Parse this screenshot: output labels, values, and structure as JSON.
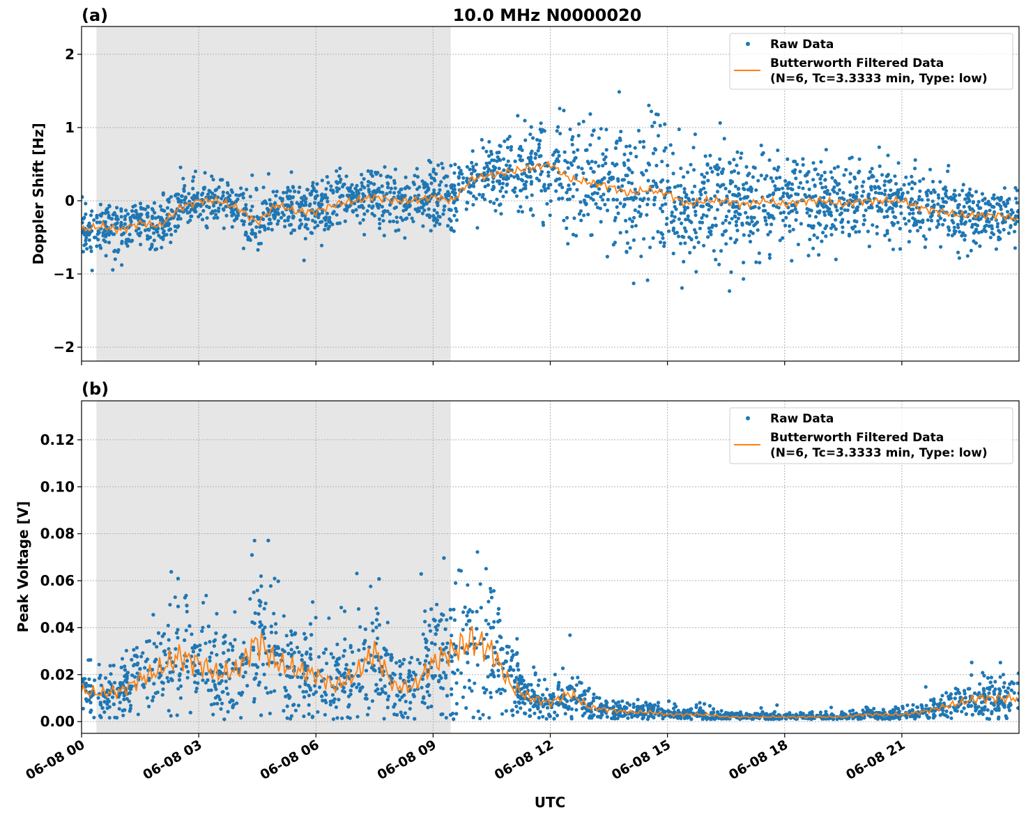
{
  "chart_data": [
    {
      "type": "scatter",
      "panel_label": "(a)",
      "title": "10.0 MHz N0000020",
      "xlabel": "",
      "ylabel": "Doppler Shift [Hz]",
      "xlim_hours": [
        0,
        24
      ],
      "ylim": [
        -2.19,
        2.38
      ],
      "yticks": [
        -2,
        -1,
        0,
        1,
        2
      ],
      "ytick_labels": [
        "−2",
        "−1",
        "0",
        "1",
        "2"
      ],
      "grid": true,
      "shaded_interval_hours": [
        0.38,
        9.45
      ],
      "legend": {
        "placement": "top-right",
        "entries": [
          "Raw Data",
          "Butterworth Filtered Data\n(N=6, Tc=3.3333 min, Type: low)"
        ]
      },
      "series": [
        {
          "name": "Raw Data",
          "kind": "scatter",
          "color": "#1f77b4",
          "note_spread_half_width": [
            [
              0,
              0.3
            ],
            [
              10,
              0.4
            ],
            [
              14,
              0.8
            ],
            [
              21,
              0.45
            ],
            [
              24,
              0.35
            ]
          ]
        },
        {
          "name": "Butterworth Filtered Data (N=6, Tc=3.3333 min, Type: low)",
          "kind": "line",
          "color": "#ff7f0e",
          "x_hours": [
            0,
            0.5,
            1,
            1.5,
            2,
            2.5,
            3,
            3.5,
            4,
            4.5,
            5,
            5.5,
            6,
            6.5,
            7,
            7.5,
            8,
            8.5,
            9,
            9.5,
            10,
            10.5,
            11,
            11.5,
            12,
            12.5,
            13,
            13.5,
            14,
            14.5,
            15,
            15.5,
            16,
            16.5,
            17,
            17.5,
            18,
            18.5,
            19,
            19.5,
            20,
            20.5,
            21,
            21.5,
            22,
            22.5,
            23,
            23.5,
            24
          ],
          "y": [
            -0.4,
            -0.35,
            -0.4,
            -0.3,
            -0.35,
            -0.1,
            0.0,
            0.0,
            -0.1,
            -0.3,
            -0.05,
            -0.15,
            -0.15,
            -0.05,
            0.0,
            0.05,
            0.0,
            0.0,
            0.05,
            0.0,
            0.3,
            0.35,
            0.4,
            0.45,
            0.5,
            0.3,
            0.25,
            0.2,
            0.1,
            0.15,
            0.1,
            -0.05,
            0.0,
            0.0,
            -0.05,
            0.0,
            -0.05,
            0.0,
            0.0,
            -0.05,
            0.0,
            0.0,
            0.0,
            -0.1,
            -0.15,
            -0.2,
            -0.2,
            -0.2,
            -0.25
          ]
        }
      ]
    },
    {
      "type": "scatter",
      "panel_label": "(b)",
      "title": "",
      "xlabel": "UTC",
      "ylabel": "Peak Voltage [V]",
      "xlim_hours": [
        0,
        24
      ],
      "ylim": [
        -0.005,
        0.1366
      ],
      "yticks": [
        0,
        0.02,
        0.04,
        0.06,
        0.08,
        0.1,
        0.12
      ],
      "ytick_labels": [
        "0.00",
        "0.02",
        "0.04",
        "0.06",
        "0.08",
        "0.10",
        "0.12"
      ],
      "xticks_hours": [
        0,
        3,
        6,
        9,
        12,
        15,
        18,
        21
      ],
      "xtick_labels": [
        "06-08 00",
        "06-08 03",
        "06-08 06",
        "06-08 09",
        "06-08 12",
        "06-08 15",
        "06-08 18",
        "06-08 21"
      ],
      "grid": true,
      "shaded_interval_hours": [
        0.38,
        9.45
      ],
      "legend": {
        "placement": "top-right",
        "entries": [
          "Raw Data",
          "Butterworth Filtered Data\n(N=6, Tc=3.3333 min, Type: low)"
        ]
      },
      "series": [
        {
          "name": "Raw Data",
          "kind": "scatter",
          "color": "#1f77b4"
        },
        {
          "name": "Butterworth Filtered Data (N=6, Tc=3.3333 min, Type: low)",
          "kind": "line",
          "color": "#ff7f0e",
          "x_hours": [
            0,
            0.5,
            1,
            1.5,
            2,
            2.5,
            3,
            3.5,
            4,
            4.5,
            5,
            5.5,
            6,
            6.5,
            7,
            7.5,
            8,
            8.5,
            9,
            9.5,
            10,
            10.5,
            11,
            11.5,
            12,
            12.5,
            13,
            13.5,
            14,
            14.5,
            15,
            15.5,
            16,
            16.5,
            17,
            17.5,
            18,
            18.5,
            19,
            19.5,
            20,
            20.5,
            21,
            21.5,
            22,
            22.5,
            23,
            23.5,
            24
          ],
          "y": [
            0.013,
            0.012,
            0.013,
            0.018,
            0.022,
            0.028,
            0.025,
            0.02,
            0.022,
            0.035,
            0.025,
            0.022,
            0.02,
            0.015,
            0.02,
            0.03,
            0.015,
            0.015,
            0.025,
            0.03,
            0.035,
            0.03,
            0.015,
            0.01,
            0.008,
            0.012,
            0.006,
            0.005,
            0.004,
            0.004,
            0.003,
            0.003,
            0.003,
            0.002,
            0.002,
            0.002,
            0.002,
            0.002,
            0.002,
            0.002,
            0.003,
            0.003,
            0.003,
            0.004,
            0.006,
            0.008,
            0.01,
            0.01,
            0.01
          ]
        }
      ]
    }
  ]
}
